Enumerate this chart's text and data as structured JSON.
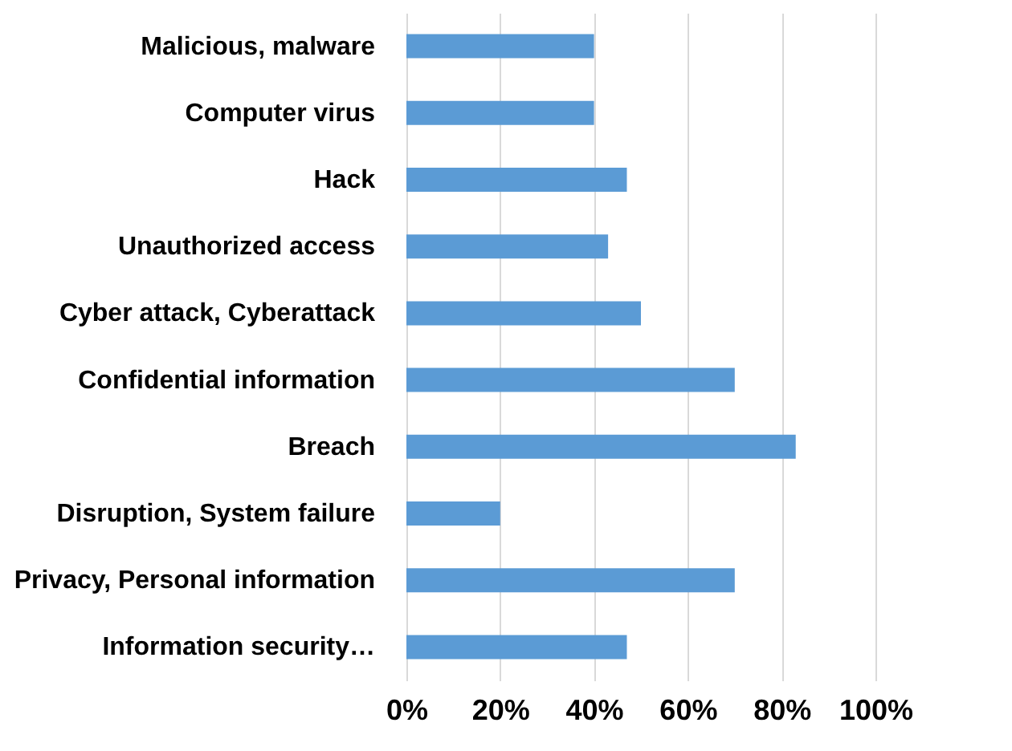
{
  "chart_data": {
    "type": "bar",
    "orientation": "horizontal",
    "categories": [
      "Malicious, malware",
      "Computer virus",
      "Hack",
      "Unauthorized access",
      "Cyber attack, Cyberattack",
      "Confidential information",
      "Breach",
      "Disruption, System failure",
      "Privacy, Personal information",
      "Information security…"
    ],
    "values": [
      40,
      40,
      47,
      43,
      50,
      70,
      83,
      20,
      70,
      47
    ],
    "color": "#5b9bd5",
    "xlim": [
      0,
      100
    ],
    "xticks": [
      {
        "value": 0,
        "label": "0%"
      },
      {
        "value": 20,
        "label": "20%"
      },
      {
        "value": 40,
        "label": "40%"
      },
      {
        "value": 60,
        "label": "60%"
      },
      {
        "value": 80,
        "label": "80%"
      },
      {
        "value": 100,
        "label": "100%"
      }
    ],
    "grid": "x"
  }
}
